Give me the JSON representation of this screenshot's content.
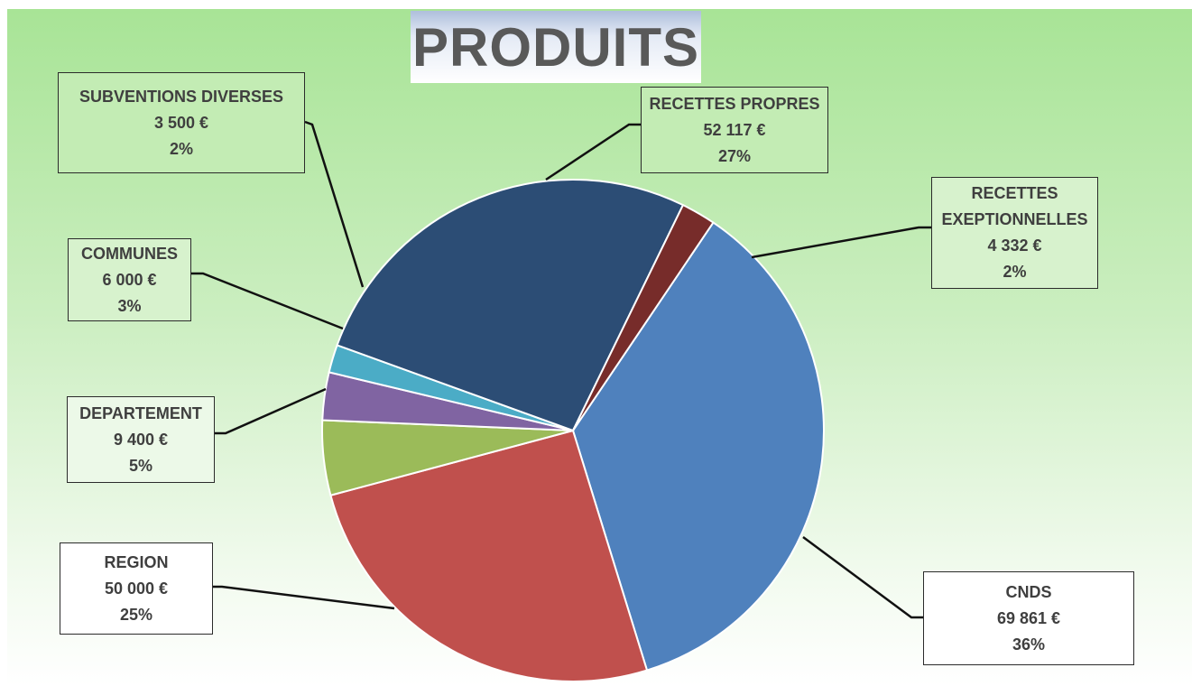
{
  "title": "PRODUITS",
  "colors": {
    "background_top": "#a8e496",
    "background_bottom": "#ffffff",
    "leader_line": "#111111"
  },
  "chart_data": {
    "type": "pie",
    "title": "PRODUITS",
    "start": "12 o'clock, counter-clockwise from bottom-right",
    "slices": [
      {
        "name": "CNDS",
        "value": 69861,
        "value_label": "69 861 €",
        "percent_label": "36%",
        "color": "#4f81bd"
      },
      {
        "name": "REGION",
        "value": 50000,
        "value_label": "50 000 €",
        "percent_label": "25%",
        "color": "#c0504d"
      },
      {
        "name": "DEPARTEMENT",
        "value": 9400,
        "value_label": "9 400 €",
        "percent_label": "5%",
        "color": "#9bbb59"
      },
      {
        "name": "COMMUNES",
        "value": 6000,
        "value_label": "6 000 €",
        "percent_label": "3%",
        "color": "#8064a2"
      },
      {
        "name": "SUBVENTIONS DIVERSES",
        "value": 3500,
        "value_label": "3 500 €",
        "percent_label": "2%",
        "color": "#4bacc6"
      },
      {
        "name": "RECETTES PROPRES",
        "value": 52117,
        "value_label": "52 117 €",
        "percent_label": "27%",
        "color": "#2c4d75"
      },
      {
        "name": "RECETTES EXEPTIONNELLES",
        "value": 4332,
        "value_label": "4 332 €",
        "percent_label": "2%",
        "color": "#772c2a"
      }
    ]
  },
  "labels": {
    "cnds": {
      "line1": "CNDS",
      "line2": "69 861 €",
      "line3": "36%"
    },
    "region": {
      "line1": "REGION",
      "line2": "50 000 €",
      "line3": "25%"
    },
    "departement": {
      "line1": "DEPARTEMENT",
      "line2": "9 400 €",
      "line3": "5%"
    },
    "communes": {
      "line1": "COMMUNES",
      "line2": "6 000 €",
      "line3": "3%"
    },
    "subventions": {
      "line1": "SUBVENTIONS DIVERSES",
      "line2": "3 500 €",
      "line3": "2%"
    },
    "recettes_propres": {
      "line1": "RECETTES PROPRES",
      "line2": "52 117 €",
      "line3": "27%"
    },
    "recettes_exceptionnelles": {
      "line1": "RECETTES",
      "line1b": "EXEPTIONNELLES",
      "line2": "4 332 €",
      "line3": "2%"
    }
  }
}
